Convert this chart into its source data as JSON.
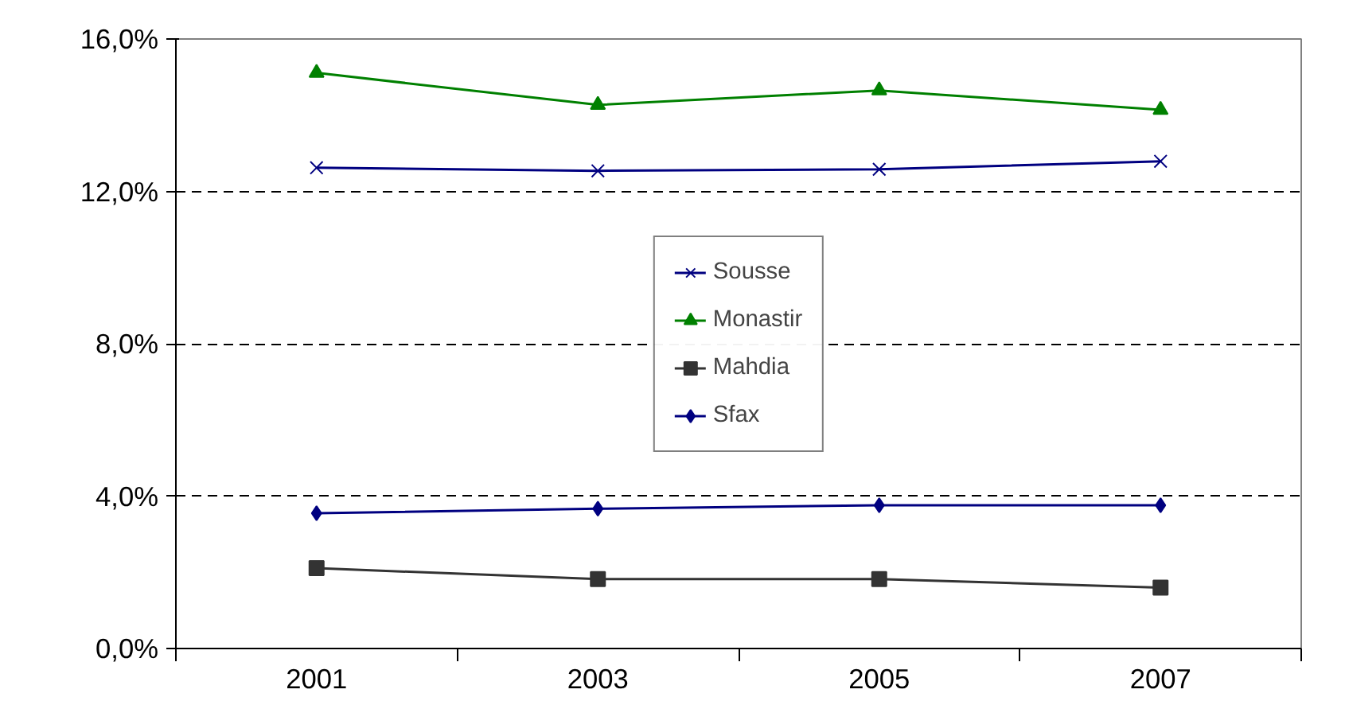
{
  "chart_data": {
    "type": "line",
    "categories": [
      "2001",
      "2003",
      "2005",
      "2007"
    ],
    "series": [
      {
        "name": "Sousse",
        "color": "#000080",
        "marker": "cross",
        "values": [
          12.62,
          12.54,
          12.58,
          12.79
        ]
      },
      {
        "name": "Monastir",
        "color": "#008000",
        "marker": "triangle",
        "values": [
          15.11,
          14.27,
          14.65,
          14.14
        ]
      },
      {
        "name": "Mahdia",
        "color": "#333333",
        "marker": "square",
        "values": [
          2.11,
          1.82,
          1.82,
          1.6
        ]
      },
      {
        "name": "Sfax",
        "color": "#000080",
        "marker": "diamond",
        "values": [
          3.55,
          3.67,
          3.76,
          3.76
        ]
      }
    ],
    "ylim": [
      0,
      16
    ],
    "yticks": [
      {
        "value": 0,
        "label": "0,0%"
      },
      {
        "value": 4,
        "label": "4,0%"
      },
      {
        "value": 8,
        "label": "8,0%"
      },
      {
        "value": 12,
        "label": "12,0%"
      },
      {
        "value": 16,
        "label": "16,0%"
      }
    ],
    "grid": "y",
    "legend": "center",
    "line_style": "solid"
  }
}
